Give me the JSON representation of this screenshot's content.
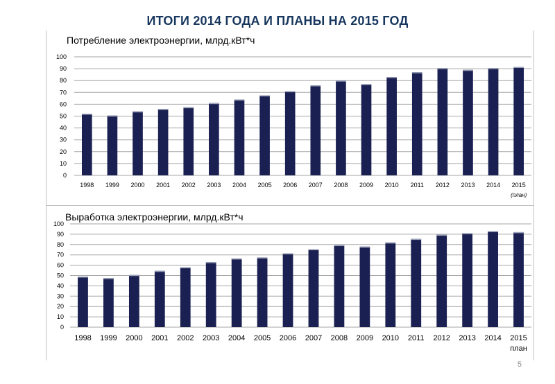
{
  "slide": {
    "title": "ИТОГИ 2014 ГОДА И ПЛАНЫ НА 2015 ГОД",
    "page_number": "5",
    "bar_color": "#1a2152"
  },
  "chart_data": [
    {
      "type": "bar",
      "title": "Потребление электроэнергии, млрд.кВт*ч",
      "categories": [
        "1998",
        "1999",
        "2000",
        "2001",
        "2002",
        "2003",
        "2004",
        "2005",
        "2006",
        "2007",
        "2008",
        "2009",
        "2010",
        "2011",
        "2012",
        "2013",
        "2014",
        "2015"
      ],
      "values": [
        52,
        50.5,
        54,
        56,
        57.5,
        61,
        64,
        67.5,
        71,
        76,
        80,
        77,
        83,
        87,
        90.5,
        89,
        90.5,
        91.5
      ],
      "last_category_note": "(план)",
      "ylim": [
        0,
        100
      ],
      "yticks": [
        0,
        10,
        20,
        30,
        40,
        50,
        60,
        70,
        80,
        90,
        100
      ],
      "grid": true
    },
    {
      "type": "bar",
      "title": "Выработка электроэнергии, млрд.кВт*ч",
      "categories": [
        "1998",
        "1999",
        "2000",
        "2001",
        "2002",
        "2003",
        "2004",
        "2005",
        "2006",
        "2007",
        "2008",
        "2009",
        "2010",
        "2011",
        "2012",
        "2013",
        "2014",
        "2015"
      ],
      "values": [
        49,
        47.5,
        50.5,
        54.5,
        58,
        63,
        66.5,
        67.5,
        71.5,
        75.5,
        79.5,
        78,
        82,
        85.5,
        89.5,
        91,
        93,
        92
      ],
      "last_category_note": "план",
      "ylim": [
        0,
        100
      ],
      "yticks": [
        0,
        10,
        20,
        30,
        40,
        50,
        60,
        70,
        80,
        90,
        100
      ],
      "grid": true
    }
  ]
}
